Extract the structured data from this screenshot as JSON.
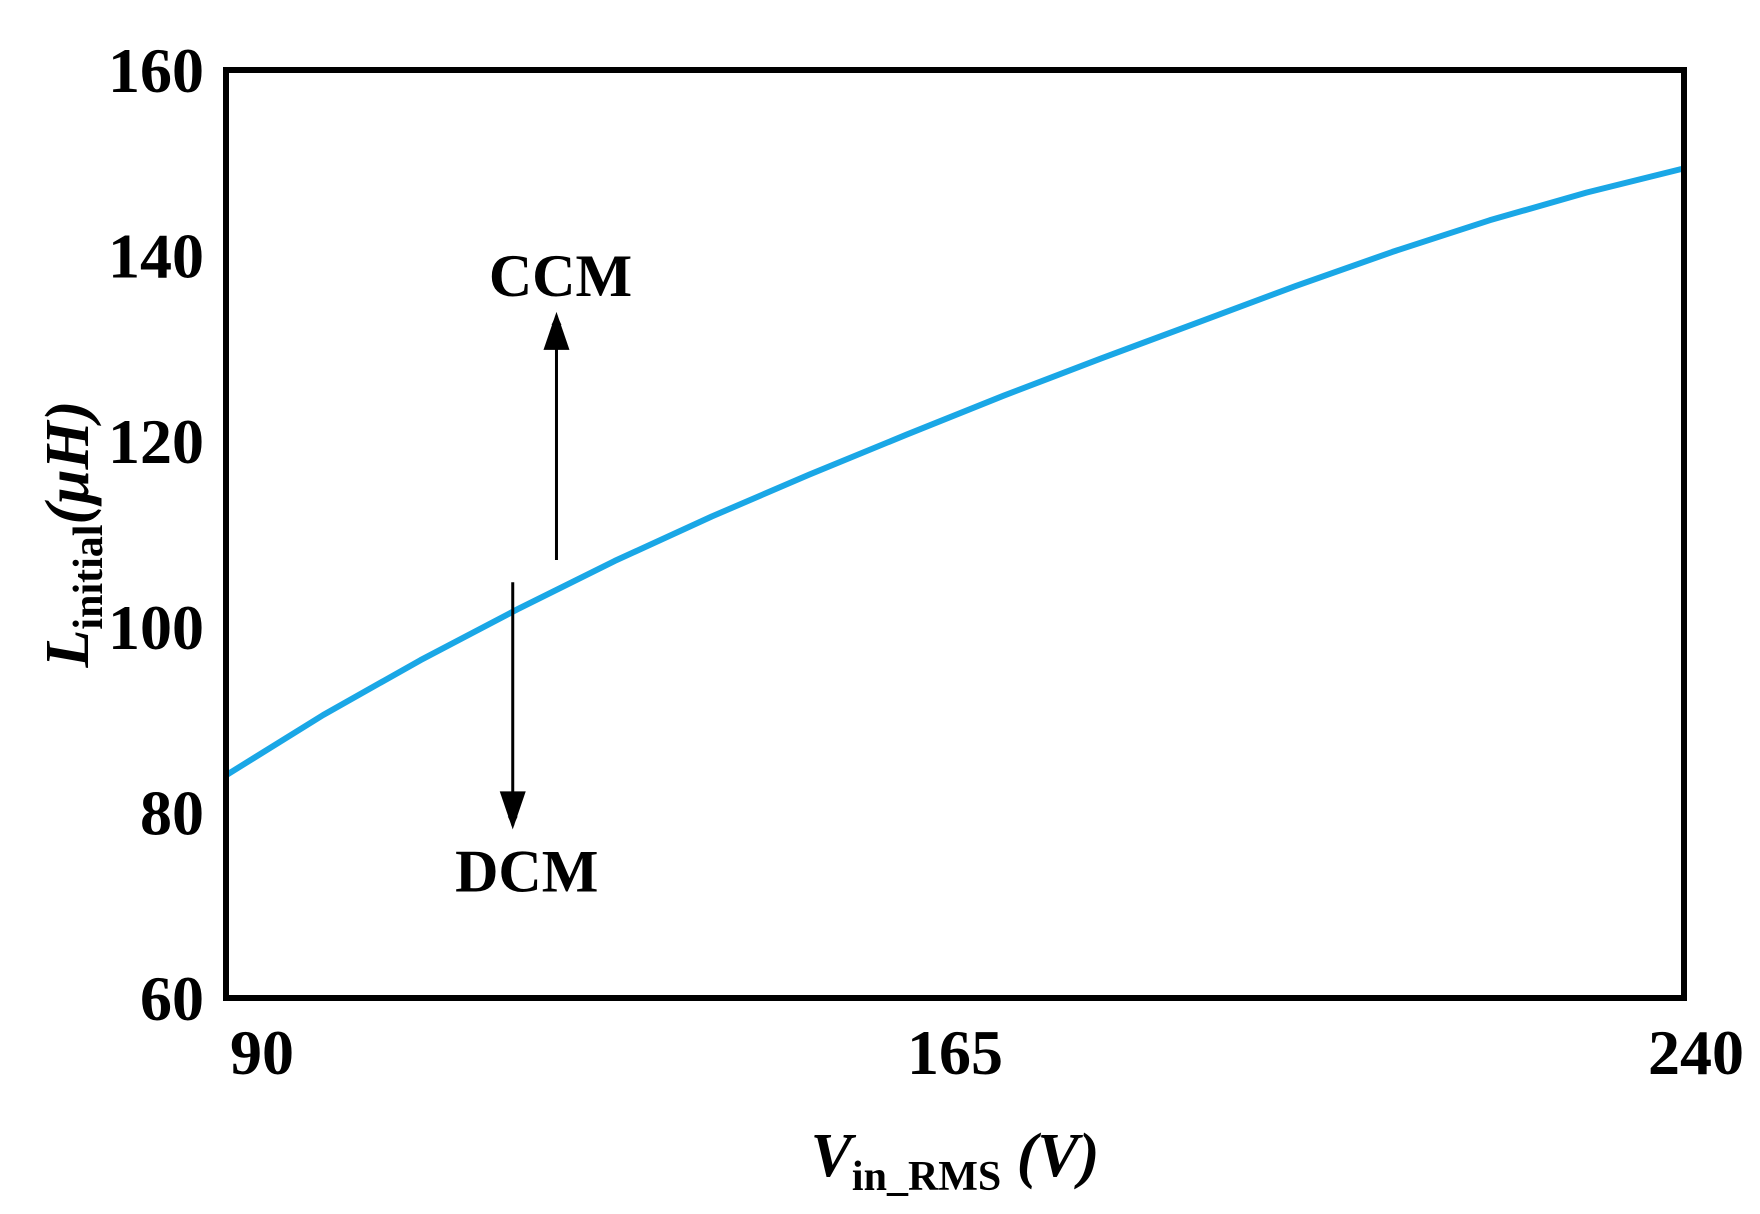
{
  "chart_data": {
    "type": "line",
    "xlabel": {
      "main": "V",
      "sub": "in_RMS",
      "unit": " (V)"
    },
    "ylabel": {
      "main": "L",
      "sub": "initial",
      "unit": "(μH)"
    },
    "xlim": [
      90,
      240
    ],
    "ylim": [
      60,
      160
    ],
    "xticks": [
      90,
      165,
      240
    ],
    "xtick_labels": [
      "90",
      "165",
      "240"
    ],
    "yticks": [
      60,
      80,
      100,
      120,
      140,
      160
    ],
    "ytick_labels": [
      "60",
      "80",
      "100",
      "120",
      "140",
      "160"
    ],
    "grid": false,
    "series": [
      {
        "color": "#1aa7e6",
        "x": [
          90,
          100,
          110,
          120,
          130,
          140,
          150,
          160,
          170,
          180,
          190,
          200,
          210,
          220,
          230,
          240
        ],
        "y": [
          84,
          90.5,
          96.4,
          101.9,
          107.1,
          111.9,
          116.4,
          120.7,
          124.9,
          128.9,
          132.8,
          136.7,
          140.4,
          143.8,
          146.8,
          149.4
        ]
      }
    ],
    "annotations": [
      {
        "text": "CCM",
        "arrow_x": 124,
        "arrow_from_y": 107.2,
        "arrow_to_y": 133.5,
        "direction": "up"
      },
      {
        "text": "DCM",
        "arrow_x": 119.5,
        "arrow_from_y": 104.8,
        "arrow_to_y": 78.6,
        "direction": "down"
      }
    ]
  }
}
